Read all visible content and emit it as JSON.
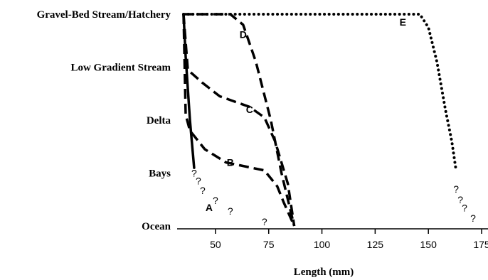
{
  "chart_data": {
    "type": "line",
    "title": "",
    "xlabel": "Length (mm)",
    "ylabel": "",
    "xlim": [
      32,
      178
    ],
    "x_ticks": [
      50,
      75,
      100,
      125,
      150,
      175
    ],
    "habitats": [
      "Ocean",
      "Bays",
      "Delta",
      "Low Gradient Stream",
      "Gravel-Bed Stream/Hatchery"
    ],
    "grid": false,
    "series": [
      {
        "name": "A",
        "style": "solid",
        "color": "#000000",
        "points": [
          [
            35,
            4
          ],
          [
            36,
            3.2
          ],
          [
            38,
            2.0
          ],
          [
            40,
            1.1
          ]
        ],
        "question_marks": [
          [
            40,
            1.0
          ],
          [
            42,
            0.85
          ],
          [
            44,
            0.67
          ],
          [
            50,
            0.48
          ],
          [
            57,
            0.28
          ],
          [
            73,
            0.08
          ]
        ]
      },
      {
        "name": "B",
        "style": "long-dash",
        "color": "#000000",
        "points": [
          [
            35,
            4
          ],
          [
            36,
            2.1
          ],
          [
            38,
            1.8
          ],
          [
            45,
            1.45
          ],
          [
            55,
            1.2
          ],
          [
            73,
            1.05
          ],
          [
            79,
            0.75
          ],
          [
            82,
            0.45
          ],
          [
            87,
            0
          ]
        ],
        "question_marks": []
      },
      {
        "name": "C",
        "style": "long-dash",
        "color": "#000000",
        "points": [
          [
            35,
            4
          ],
          [
            37,
            2.95
          ],
          [
            44,
            2.7
          ],
          [
            52,
            2.45
          ],
          [
            66,
            2.25
          ],
          [
            73,
            2.05
          ],
          [
            78,
            1.6
          ],
          [
            84,
            0.8
          ],
          [
            87,
            0
          ]
        ],
        "question_marks": []
      },
      {
        "name": "D",
        "style": "long-dash",
        "color": "#000000",
        "points": [
          [
            35,
            4
          ],
          [
            57,
            4
          ],
          [
            63,
            3.8
          ],
          [
            69,
            3.1
          ],
          [
            76,
            2.0
          ],
          [
            81,
            1.0
          ],
          [
            87,
            0
          ]
        ],
        "question_marks": []
      },
      {
        "name": "E",
        "style": "dotted",
        "color": "#000000",
        "points": [
          [
            35,
            4
          ],
          [
            146,
            4
          ],
          [
            150,
            3.75
          ],
          [
            154,
            3.1
          ],
          [
            158,
            2.2
          ],
          [
            161,
            1.6
          ],
          [
            163,
            1.05
          ]
        ],
        "question_marks": [
          [
            163,
            0.7
          ],
          [
            165,
            0.5
          ],
          [
            167,
            0.34
          ],
          [
            171,
            0.15
          ]
        ]
      }
    ],
    "series_label_positions": [
      {
        "name": "A",
        "x": 47,
        "y": 0.35
      },
      {
        "name": "B",
        "x": 57,
        "y": 1.2
      },
      {
        "name": "C",
        "x": 66,
        "y": 2.2
      },
      {
        "name": "D",
        "x": 63,
        "y": 3.62
      },
      {
        "name": "E",
        "x": 138,
        "y": 3.85
      }
    ]
  }
}
